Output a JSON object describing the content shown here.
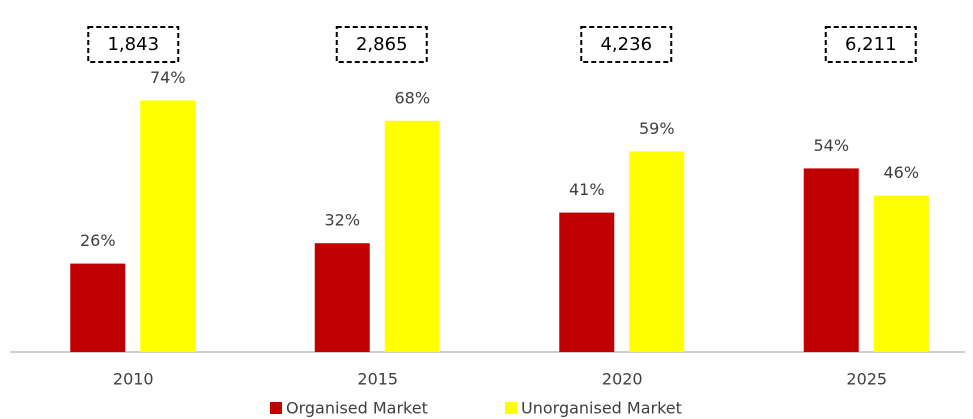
{
  "chart_data": {
    "type": "bar",
    "categories": [
      "2010",
      "2015",
      "2020",
      "2025"
    ],
    "series": [
      {
        "name": "Organised Market",
        "color": "#c00000",
        "values": [
          26,
          32,
          41,
          54
        ],
        "value_labels": [
          "26%",
          "32%",
          "41%",
          "54%"
        ]
      },
      {
        "name": "Unorganised Market",
        "color": "#ffff00",
        "values": [
          74,
          68,
          59,
          46
        ],
        "value_labels": [
          "74%",
          "68%",
          "59%",
          "46%"
        ]
      }
    ],
    "annotations": [
      "1,843",
      "2,865",
      "4,236",
      "6,211"
    ],
    "legend": "bottom"
  }
}
